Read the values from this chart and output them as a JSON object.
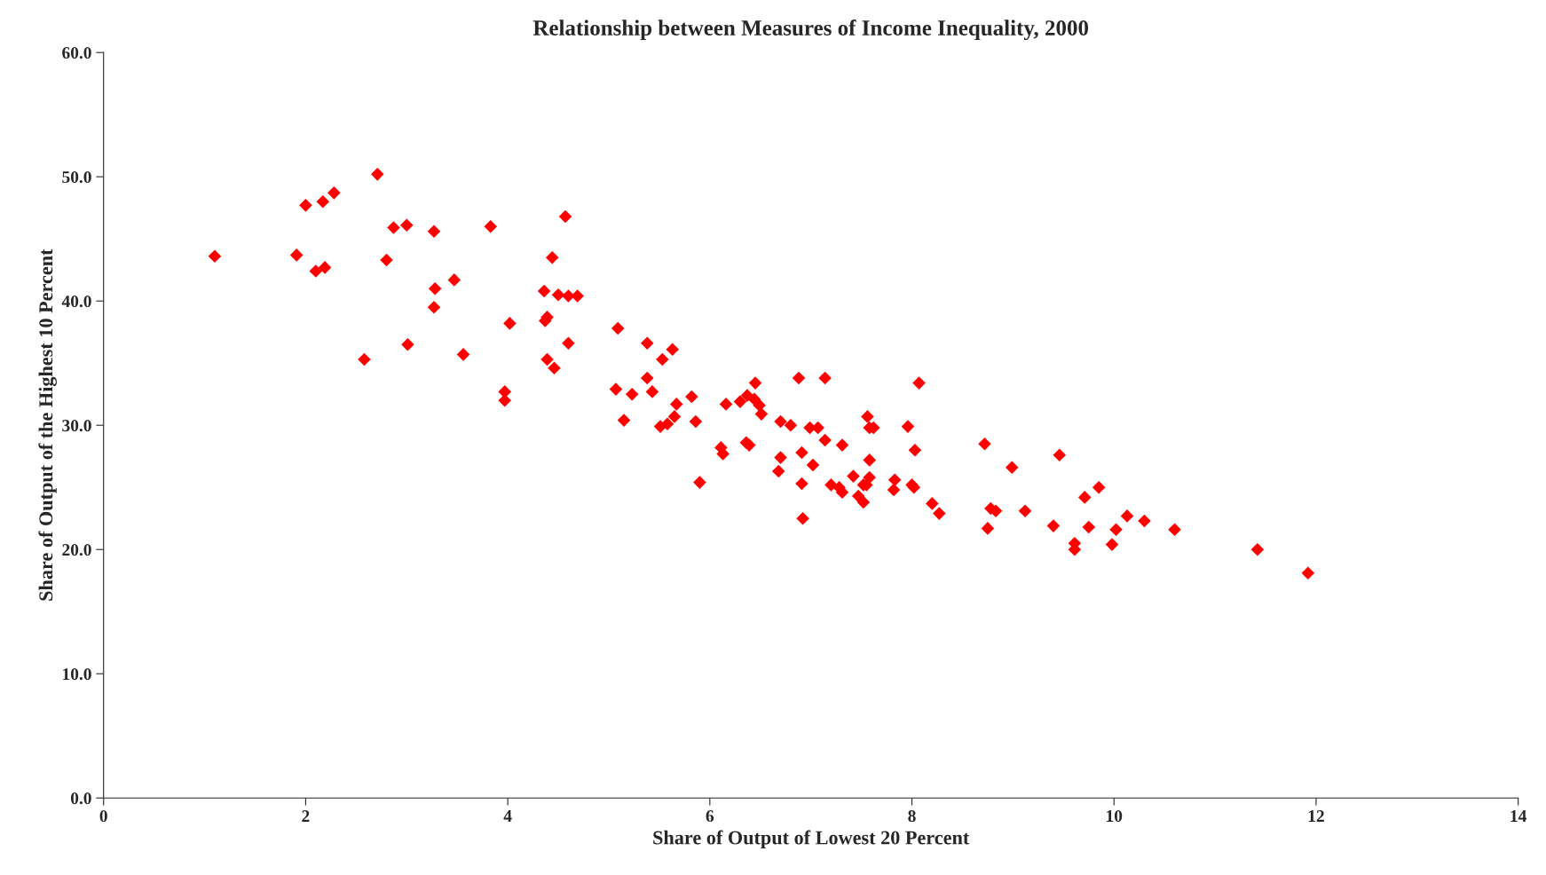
{
  "chart_data": {
    "type": "scatter",
    "title": "Relationship between Measures of Income Inequality, 2000",
    "xlabel": "Share of Output of Lowest 20 Percent",
    "ylabel": "Share of Output of the Highest 10 Percent",
    "x": [
      1.1,
      1.91,
      2.0,
      2.17,
      2.28,
      2.1,
      2.19,
      2.71,
      2.87,
      3.0,
      2.8,
      2.58,
      3.27,
      3.28,
      3.27,
      3.01,
      3.47,
      3.56,
      3.83,
      4.02,
      3.97,
      3.97,
      4.36,
      4.39,
      4.37,
      4.44,
      4.57,
      4.5,
      4.6,
      4.69,
      4.39,
      4.46,
      4.6,
      5.09,
      5.38,
      5.63,
      5.53,
      5.38,
      5.43,
      5.07,
      5.23,
      5.15,
      5.51,
      5.58,
      5.65,
      5.67,
      5.82,
      5.86,
      5.9,
      6.11,
      6.13,
      6.16,
      6.3,
      6.37,
      6.44,
      6.49,
      6.51,
      6.45,
      6.36,
      6.39,
      6.7,
      6.8,
      6.7,
      6.68,
      6.88,
      7.14,
      6.99,
      7.07,
      7.14,
      6.91,
      7.02,
      6.91,
      6.92,
      7.2,
      7.28,
      7.31,
      7.31,
      7.42,
      7.47,
      7.52,
      7.52,
      7.56,
      7.58,
      7.62,
      7.58,
      7.58,
      7.55,
      7.83,
      7.82,
      7.96,
      8.03,
      8.07,
      8.0,
      8.02,
      8.2,
      8.27,
      8.72,
      8.75,
      8.78,
      8.83,
      8.99,
      9.12,
      9.4,
      9.46,
      9.61,
      9.61,
      9.71,
      9.75,
      9.85,
      9.98,
      10.02,
      10.13,
      10.3,
      10.6,
      11.42,
      11.92
    ],
    "series": [
      {
        "color": "#ff0000",
        "values": [
          43.6,
          43.7,
          47.7,
          48.0,
          48.7,
          42.4,
          42.7,
          50.2,
          45.9,
          46.1,
          43.3,
          35.3,
          45.6,
          41.0,
          39.5,
          36.5,
          41.7,
          35.7,
          46.0,
          38.2,
          32.7,
          32.0,
          40.8,
          38.7,
          38.4,
          43.5,
          46.8,
          40.5,
          40.4,
          40.4,
          35.3,
          34.6,
          36.6,
          37.8,
          36.6,
          36.1,
          35.3,
          33.8,
          32.7,
          32.9,
          32.5,
          30.4,
          29.9,
          30.1,
          30.7,
          31.7,
          32.3,
          30.3,
          25.4,
          28.2,
          27.7,
          31.7,
          31.9,
          32.4,
          32.1,
          31.6,
          30.9,
          33.4,
          28.6,
          28.4,
          30.3,
          30.0,
          27.4,
          26.3,
          33.8,
          33.8,
          29.8,
          29.8,
          28.8,
          27.8,
          26.8,
          25.3,
          22.5,
          25.2,
          25.0,
          24.6,
          28.4,
          25.9,
          24.3,
          23.8,
          25.2,
          30.7,
          29.8,
          29.8,
          27.2,
          25.8,
          25.2,
          25.6,
          24.8,
          29.9,
          28.0,
          33.4,
          25.2,
          25.0,
          23.7,
          22.9,
          28.5,
          21.7,
          23.3,
          23.1,
          26.6,
          23.1,
          21.9,
          27.6,
          20.5,
          20.0,
          24.2,
          21.8,
          25.0,
          20.4,
          21.6,
          22.7,
          22.3,
          21.6,
          20.0,
          18.1
        ]
      }
    ],
    "marker": "diamond",
    "xlim": [
      0,
      14
    ],
    "xticks": [
      0,
      2,
      4,
      6,
      8,
      10,
      12,
      14
    ],
    "ylim": [
      0,
      60
    ],
    "yticks": [
      {
        "value": 0,
        "label": "0.0"
      },
      {
        "value": 10,
        "label": "10.0"
      },
      {
        "value": 20,
        "label": "20.0"
      },
      {
        "value": 30,
        "label": "30.0"
      },
      {
        "value": 40,
        "label": "40.0"
      },
      {
        "value": 50,
        "label": "50.0"
      },
      {
        "value": 60,
        "label": "60.0"
      }
    ],
    "grid": false,
    "legend": false
  }
}
